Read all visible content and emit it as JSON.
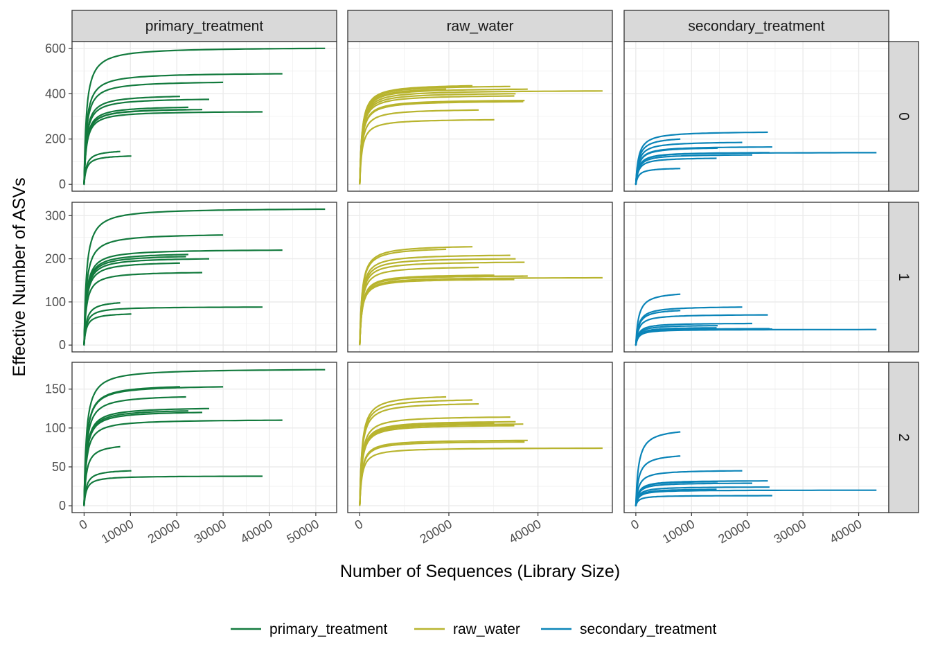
{
  "chart_data": {
    "type": "line",
    "xlabel": "Number of Sequences (Library Size)",
    "ylabel": "Effective Number of ASVs",
    "col_facets": [
      "primary_treatment",
      "raw_water",
      "secondary_treatment"
    ],
    "row_facets": [
      "0",
      "1",
      "2"
    ],
    "colors": {
      "primary_treatment": "#127a3d",
      "raw_water": "#b8b42e",
      "secondary_treatment": "#0a84b8"
    },
    "legend": {
      "position": "bottom",
      "entries": [
        "primary_treatment",
        "raw_water",
        "secondary_treatment"
      ]
    },
    "x_axes": [
      {
        "xlim": [
          -2600,
          54500
        ],
        "ticks": [
          0,
          10000,
          20000,
          30000,
          40000,
          50000
        ],
        "tick_labels": [
          "0",
          "10000",
          "20000",
          "30000",
          "40000",
          "50000"
        ],
        "minor": [
          5000,
          15000,
          25000,
          35000,
          45000
        ]
      },
      {
        "xlim": [
          -2700,
          56700
        ],
        "ticks": [
          0,
          20000,
          40000
        ],
        "tick_labels": [
          "0",
          "20000",
          "40000"
        ],
        "minor": [
          10000,
          30000,
          50000
        ]
      },
      {
        "xlim": [
          -2100,
          45400
        ],
        "ticks": [
          0,
          10000,
          20000,
          30000,
          40000
        ],
        "tick_labels": [
          "0",
          "10000",
          "20000",
          "30000",
          "40000"
        ],
        "minor": [
          5000,
          15000,
          25000,
          35000
        ]
      }
    ],
    "y_axes": [
      {
        "ylim": [
          -30,
          630
        ],
        "ticks": [
          0,
          200,
          400,
          600
        ],
        "tick_labels": [
          "0",
          "200",
          "400",
          "600"
        ],
        "minor": [
          100,
          300,
          500
        ]
      },
      {
        "ylim": [
          -15.8,
          331
        ],
        "ticks": [
          0,
          100,
          200,
          300
        ],
        "tick_labels": [
          "0",
          "100",
          "200",
          "300"
        ],
        "minor": [
          50,
          150,
          250
        ]
      },
      {
        "ylim": [
          -8.8,
          184.5
        ],
        "ticks": [
          0,
          50,
          100,
          150
        ],
        "tick_labels": [
          "0",
          "50",
          "100",
          "150"
        ],
        "minor": [
          25,
          75,
          125
        ]
      }
    ],
    "curves": {
      "primary_treatment": {
        "depth": [
          52000,
          42800,
          30000,
          38500,
          27000,
          22500,
          20700,
          22000,
          25500,
          7800,
          10200
        ],
        "q0": [
          600,
          488,
          450,
          320,
          375,
          340,
          388,
          330,
          330,
          145,
          125
        ],
        "q1": [
          315,
          220,
          255,
          88,
          200,
          210,
          190,
          205,
          168,
          98,
          72
        ],
        "q2": [
          175,
          110,
          153,
          38,
          125,
          122,
          153,
          140,
          120,
          76,
          45
        ]
      },
      "raw_water": {
        "depth": [
          54500,
          37700,
          37000,
          36700,
          34700,
          35000,
          33800,
          19400,
          25300,
          26700,
          30200
        ],
        "q0": [
          412,
          420,
          370,
          365,
          390,
          400,
          432,
          420,
          435,
          328,
          285
        ],
        "q1": [
          156,
          160,
          192,
          160,
          152,
          200,
          208,
          222,
          228,
          180,
          162
        ],
        "q2": [
          74,
          84,
          82,
          105,
          103,
          108,
          114,
          140,
          136,
          131,
          106
        ]
      },
      "secondary_treatment": {
        "depth": [
          43200,
          24500,
          19100,
          23700,
          20900,
          14700,
          14500,
          8000,
          8000,
          24000
        ],
        "q0": [
          140,
          165,
          185,
          230,
          130,
          160,
          115,
          200,
          70,
          140
        ],
        "q1": [
          36,
          37,
          88,
          70,
          50,
          45,
          40,
          118,
          80,
          38
        ],
        "q2": [
          20,
          13,
          45,
          32,
          29,
          31,
          21,
          95,
          64,
          24
        ]
      }
    }
  }
}
